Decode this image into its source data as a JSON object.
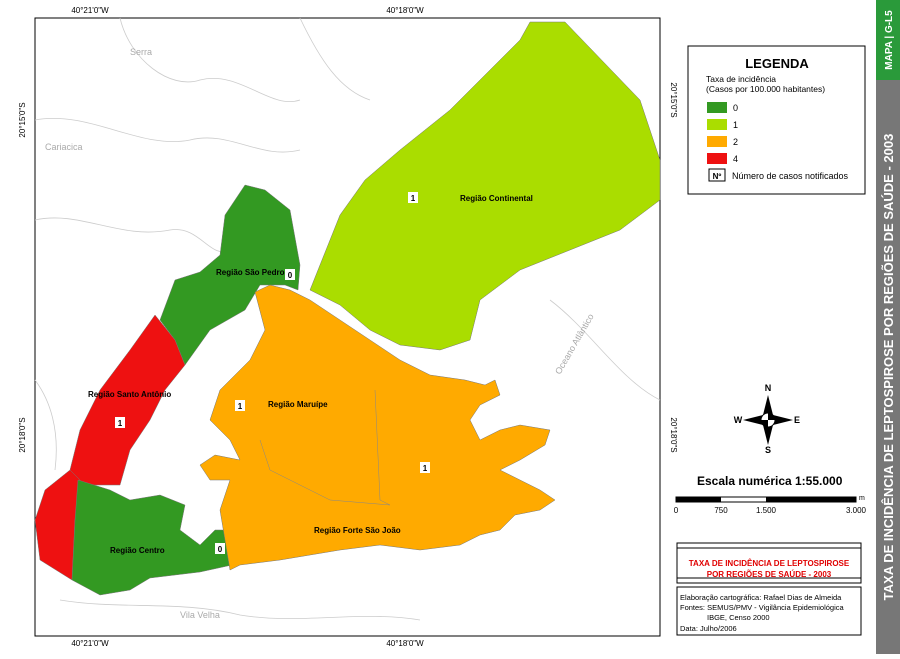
{
  "map": {
    "coordinates": {
      "top": [
        "40°21'0\"W",
        "40°18'0\"W"
      ],
      "bottom": [
        "40°21'0\"W",
        "40°18'0\"W"
      ],
      "left": [
        "20°15'0\"S",
        "20°18'0\"S"
      ],
      "right": [
        "20°15'0\"S",
        "20°18'0\"S"
      ]
    },
    "places": [
      "Serra",
      "Cariacica",
      "Vila Velha",
      "Oceano Atlântico"
    ],
    "regions": [
      {
        "label": "Região Continental",
        "cases": "1"
      },
      {
        "label": "Região São Pedro",
        "cases": "0"
      },
      {
        "label": "Região Santo Antônio",
        "cases": "1"
      },
      {
        "label": "Região Maruípe",
        "cases": "1"
      },
      {
        "label": "Região Forte São João",
        "cases": "1"
      },
      {
        "label": "Região Centro",
        "cases": "0"
      }
    ]
  },
  "legend": {
    "title": "LEGENDA",
    "subtitle": [
      "Taxa de incidência",
      "(Casos por 100.000 habitantes)"
    ],
    "items": [
      {
        "label": "0",
        "color": "#339922"
      },
      {
        "label": "1",
        "color": "#aadd00"
      },
      {
        "label": "2",
        "color": "#ffaa00"
      },
      {
        "label": "4",
        "color": "#ee1111"
      }
    ],
    "cases_symbol": "Nº",
    "cases_label": "Número de casos notificados"
  },
  "compass": [
    "N",
    "S",
    "E",
    "W"
  ],
  "scale": {
    "title": "Escala numérica",
    "ratio": "1:55.000",
    "ticks": [
      "0",
      "750",
      "1.500",
      "3.000"
    ],
    "unit": "m"
  },
  "title_box": {
    "lines": [
      "TAXA DE INCIDÊNCIA DE LEPTOSPIROSE",
      "POR REGIÕES DE SAÚDE - 2003"
    ]
  },
  "credits": [
    "Elaboração cartográfica: Rafael Dias de Almeida",
    "Fontes: SEMUS/PMV - Vigilância Epidemiológica",
    "IBGE, Censo 2000",
    "Data: Julho/2006"
  ],
  "sidebar": {
    "code": "MAPA | G-L5",
    "title": "TAXA DE INCIDÊNCIA DE LEPTOSPIROSE POR REGIÕES DE SAÚDE - 2003"
  }
}
